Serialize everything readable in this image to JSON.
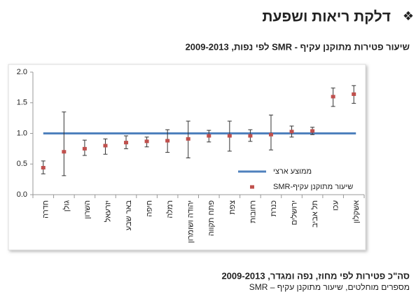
{
  "header": {
    "title": "דלקת ריאות ושפעת"
  },
  "chart_data": {
    "type": "errorbar",
    "title": "שיעור פטירות מתוקנן עקיף - SMR לפי נפות, 2009-2013",
    "categories": [
      "חדרה",
      "גולן",
      "השרון",
      "יזרעאל",
      "באר שבע",
      "חיפה",
      "רמלה",
      "יהודה ושומרון",
      "פתח תקווה",
      "צפת",
      "רחובות",
      "כנרת",
      "ירושלים",
      "תל אביב",
      "עכו",
      "אשקלון"
    ],
    "series": [
      {
        "name": "שיעור מתוקנן עקיף-SMR",
        "color": "#c0504d",
        "values": [
          0.44,
          0.7,
          0.75,
          0.8,
          0.85,
          0.87,
          0.88,
          0.91,
          0.96,
          0.96,
          0.96,
          0.98,
          1.03,
          1.04,
          1.6,
          1.64
        ],
        "ci_low": [
          0.34,
          0.31,
          0.64,
          0.66,
          0.75,
          0.78,
          0.69,
          0.6,
          0.86,
          0.71,
          0.87,
          0.73,
          0.94,
          0.98,
          1.44,
          1.49
        ],
        "ci_high": [
          0.55,
          1.35,
          0.89,
          0.91,
          0.96,
          0.94,
          1.06,
          1.2,
          1.05,
          1.2,
          1.06,
          1.3,
          1.12,
          1.1,
          1.74,
          1.78
        ]
      }
    ],
    "reference": {
      "name": "ממוצע ארצי",
      "value": 1.0,
      "color": "#4f81bd"
    },
    "ylim": [
      0,
      2
    ],
    "yticks": [
      {
        "value": 0,
        "label": "0.0"
      },
      {
        "value": 0.5,
        "label": "0.5"
      },
      {
        "value": 1,
        "label": "1.0"
      },
      {
        "value": 1.5,
        "label": "1.5"
      },
      {
        "value": 2,
        "label": "2.0"
      }
    ],
    "legend": "lower right"
  },
  "footer": {
    "title": "סה\"כ פטירות לפי מחוז, נפה ומגדר, 2009-2013",
    "subtitle": "מספרים מוחלטים, שיעור מתוקנן עקיף – SMR"
  }
}
